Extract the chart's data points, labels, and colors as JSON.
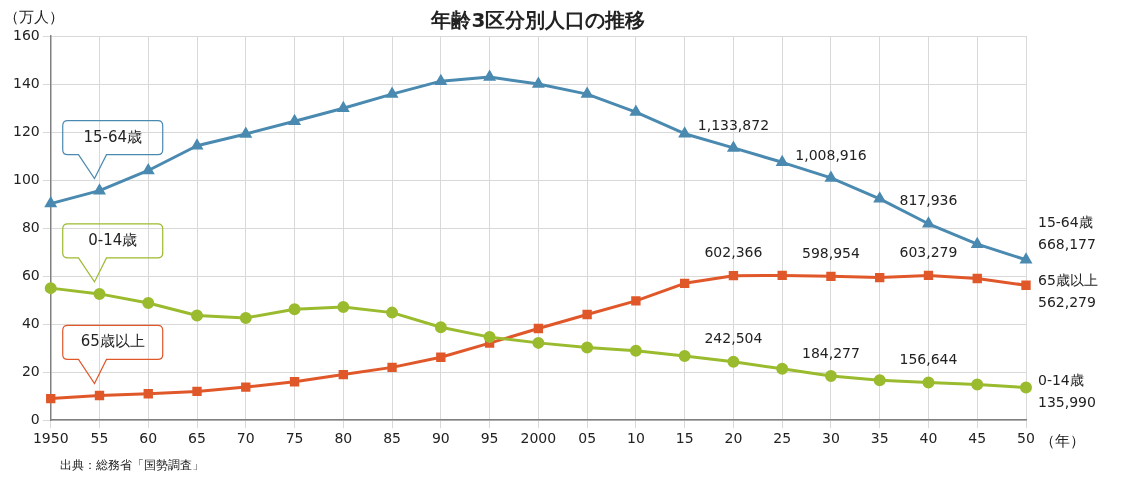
{
  "chart_data": {
    "type": "line",
    "title": "年齢3区分別人口の推移",
    "ylabel": "（万人）",
    "xlabel": "（年）",
    "categories": [
      "1950",
      "55",
      "60",
      "65",
      "70",
      "75",
      "80",
      "85",
      "90",
      "95",
      "2000",
      "05",
      "10",
      "15",
      "20",
      "25",
      "30",
      "35",
      "40",
      "45",
      "50"
    ],
    "series": [
      {
        "name": "15-64歳",
        "color": "#4a8ab0",
        "marker": "triangle",
        "values": [
          90.2,
          95.6,
          104,
          114.3,
          119.2,
          124.5,
          129.9,
          135.8,
          141.2,
          142.9,
          140,
          135.8,
          128.3,
          119.3,
          113.4,
          107.4,
          100.9,
          92.2,
          81.8,
          73.3,
          66.8
        ]
      },
      {
        "name": "0-14歳",
        "color": "#9bbb2f",
        "marker": "circle",
        "values": [
          55,
          52.6,
          48.8,
          43.6,
          42.6,
          46.2,
          47.1,
          44.8,
          38.7,
          34.6,
          32.2,
          30.3,
          28.9,
          26.7,
          24.3,
          21.4,
          18.4,
          16.6,
          15.7,
          14.9,
          13.6
        ]
      },
      {
        "name": "65歳以上",
        "color": "#e0582a",
        "marker": "square",
        "values": [
          9,
          10.3,
          11,
          12,
          13.8,
          16,
          19,
          22,
          26.2,
          32.1,
          38.2,
          44,
          49.7,
          57,
          60.2,
          60.3,
          59.9,
          59.4,
          60.3,
          59,
          56.2
        ]
      }
    ],
    "ylim": [
      0,
      160
    ],
    "yticks": [
      0,
      20,
      40,
      60,
      80,
      100,
      120,
      140,
      160
    ],
    "grid": true,
    "legend": false,
    "annotations": [
      "出典：総務省「国勢調査」",
      {
        "text": "1,133,872",
        "x": "20",
        "y": 113.4
      },
      {
        "text": "1,008,916",
        "x": "30",
        "y": 100.9
      },
      {
        "text": "817,936",
        "x": "40",
        "y": 81.8
      },
      {
        "text": "668,177",
        "x": "50",
        "y": 66.8
      },
      {
        "text": "242,504",
        "x": "20",
        "y": 24.3
      },
      {
        "text": "184,277",
        "x": "30",
        "y": 18.4
      },
      {
        "text": "156,644",
        "x": "40",
        "y": 15.7
      },
      {
        "text": "135,990",
        "x": "50",
        "y": 13.6
      },
      {
        "text": "602,366",
        "x": "20",
        "y": 60.2
      },
      {
        "text": "598,954",
        "x": "30",
        "y": 59.9
      },
      {
        "text": "603,279",
        "x": "40",
        "y": 60.3
      },
      {
        "text": "562,279",
        "x": "50",
        "y": 56.2
      }
    ]
  }
}
